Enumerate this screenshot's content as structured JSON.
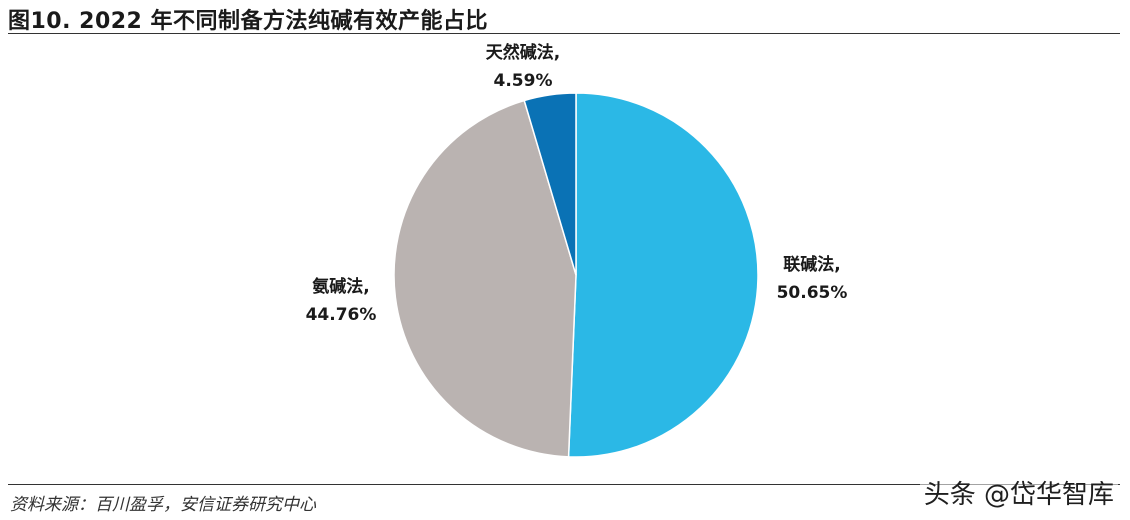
{
  "title": "图10. 2022 年不同制备方法纯碱有效产能占比",
  "source": "资料来源：百川盈孚，安信证券研究中心",
  "watermark": "头条 @岱华智库",
  "chart_data": {
    "type": "pie",
    "slices": [
      {
        "name": "联碱法,",
        "value": 50.65,
        "label": "50.65%",
        "color": "#2bb8e6"
      },
      {
        "name": "氨碱法,",
        "value": 44.76,
        "label": "44.76%",
        "color": "#bab3b1"
      },
      {
        "name": "天然碱法,",
        "value": 4.59,
        "label": "4.59%",
        "color": "#0a72b5"
      }
    ],
    "start": "12 o'clock",
    "direction": "clockwise",
    "legend": "none"
  }
}
